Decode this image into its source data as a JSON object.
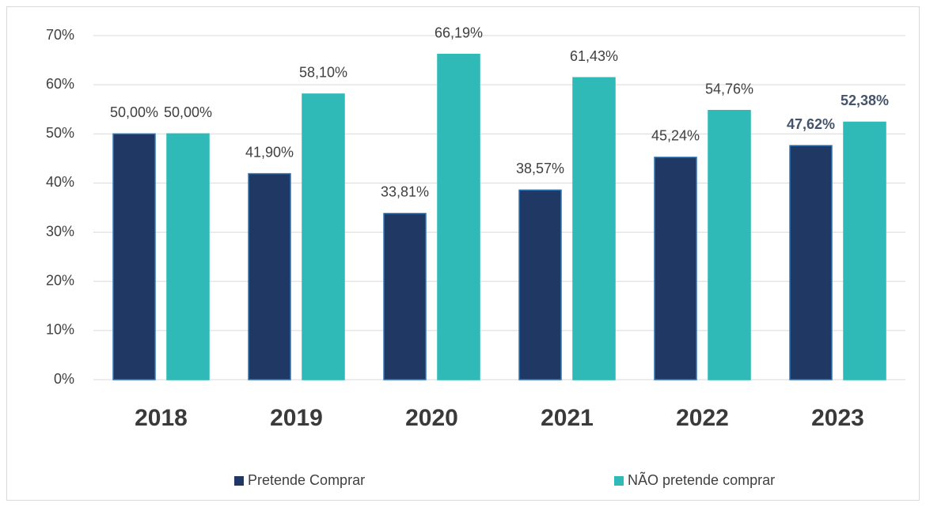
{
  "chart_data": {
    "type": "bar",
    "categories": [
      "2018",
      "2019",
      "2020",
      "2021",
      "2022",
      "2023"
    ],
    "series": [
      {
        "name": "Pretende Comprar",
        "color": "#1f3864",
        "values": [
          50,
          41.9,
          33.81,
          38.57,
          45.24,
          47.62
        ],
        "value_labels": [
          "50,00%",
          "41,90%",
          "33,81%",
          "38,57%",
          "45,24%",
          "47,62%"
        ]
      },
      {
        "name": "NÃO pretende comprar",
        "color": "#2fbab8",
        "values": [
          50,
          58.1,
          66.19,
          61.43,
          54.76,
          52.38
        ],
        "value_labels": [
          "50,00%",
          "58,10%",
          "66,19%",
          "61,43%",
          "54,76%",
          "52,38%"
        ]
      }
    ],
    "ylim": [
      0,
      70
    ],
    "yticks": [
      {
        "value": 0,
        "label": "0%"
      },
      {
        "value": 10,
        "label": "10%"
      },
      {
        "value": 20,
        "label": "20%"
      },
      {
        "value": 30,
        "label": "30%"
      },
      {
        "value": 40,
        "label": "40%"
      },
      {
        "value": 50,
        "label": "50%"
      },
      {
        "value": 60,
        "label": "60%"
      },
      {
        "value": 70,
        "label": "70%"
      }
    ],
    "grid": true,
    "legend": "bottom"
  }
}
